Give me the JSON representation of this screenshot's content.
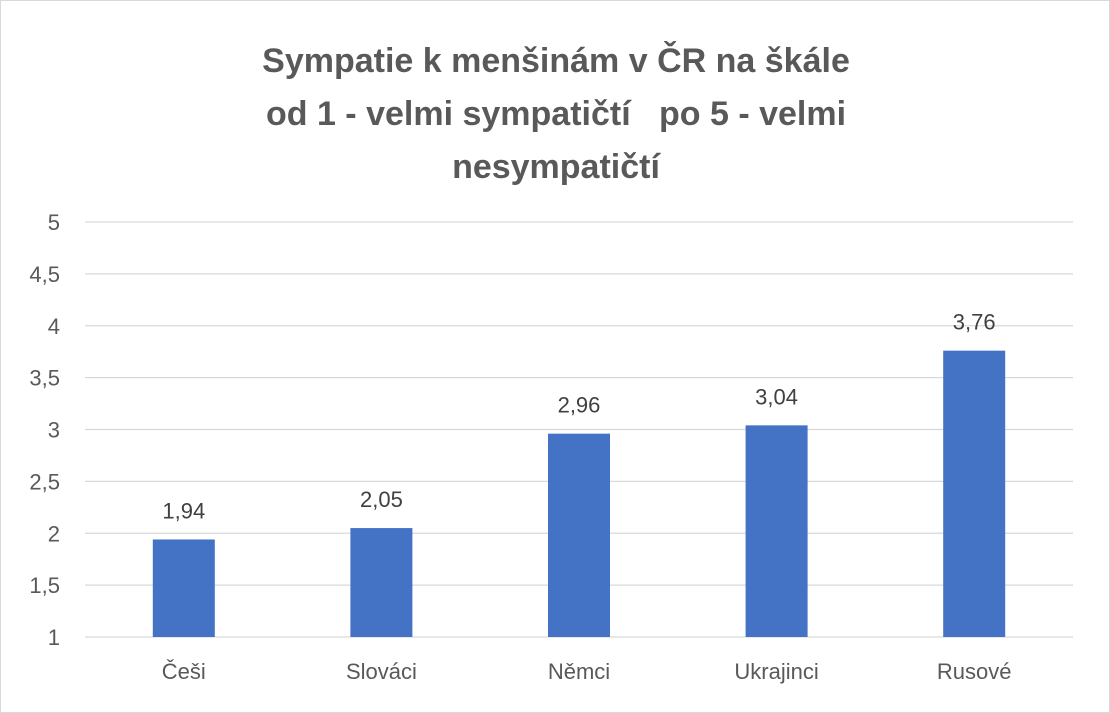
{
  "chart_data": {
    "type": "bar",
    "title_lines": [
      "Sympatie k menšinám v ČR na škále",
      "od 1 - velmi sympatičtí   po 5 - velmi",
      "nesympatičtí"
    ],
    "categories": [
      "Češi",
      "Slováci",
      "Němci",
      "Ukrajinci",
      "Rusové"
    ],
    "values": [
      1.94,
      2.05,
      2.96,
      3.04,
      3.76
    ],
    "data_labels": [
      "1,94",
      "2,05",
      "2,96",
      "3,04",
      "3,76"
    ],
    "ylim": [
      1,
      5
    ],
    "yticks": [
      1,
      1.5,
      2,
      2.5,
      3,
      3.5,
      4,
      4.5,
      5
    ],
    "ytick_labels": [
      "1",
      "1,5",
      "2",
      "2,5",
      "3",
      "3,5",
      "4",
      "4,5",
      "5"
    ],
    "grid": true,
    "bar_color": "#4472C4",
    "grid_color": "#d9d9d9",
    "text_color": "#595959"
  }
}
